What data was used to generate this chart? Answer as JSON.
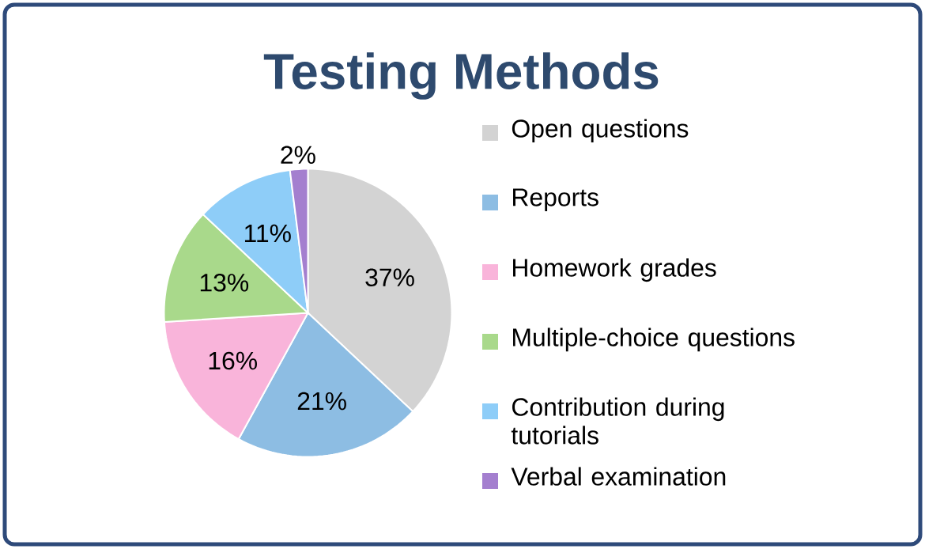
{
  "chart_data": {
    "type": "pie",
    "title": "Testing Methods",
    "categories": [
      "Open questions",
      "Reports",
      "Homework grades",
      "Multiple-choice questions",
      "Contribution during tutorials",
      "Verbal examination"
    ],
    "values": [
      37,
      21,
      16,
      13,
      11,
      2
    ],
    "colors": [
      "#d3d3d3",
      "#8dbde3",
      "#f9b4da",
      "#a9d98b",
      "#8ecdf8",
      "#a47fcf"
    ],
    "value_labels": [
      "37%",
      "21%",
      "16%",
      "13%",
      "11%",
      "2%"
    ],
    "legend": "right"
  }
}
